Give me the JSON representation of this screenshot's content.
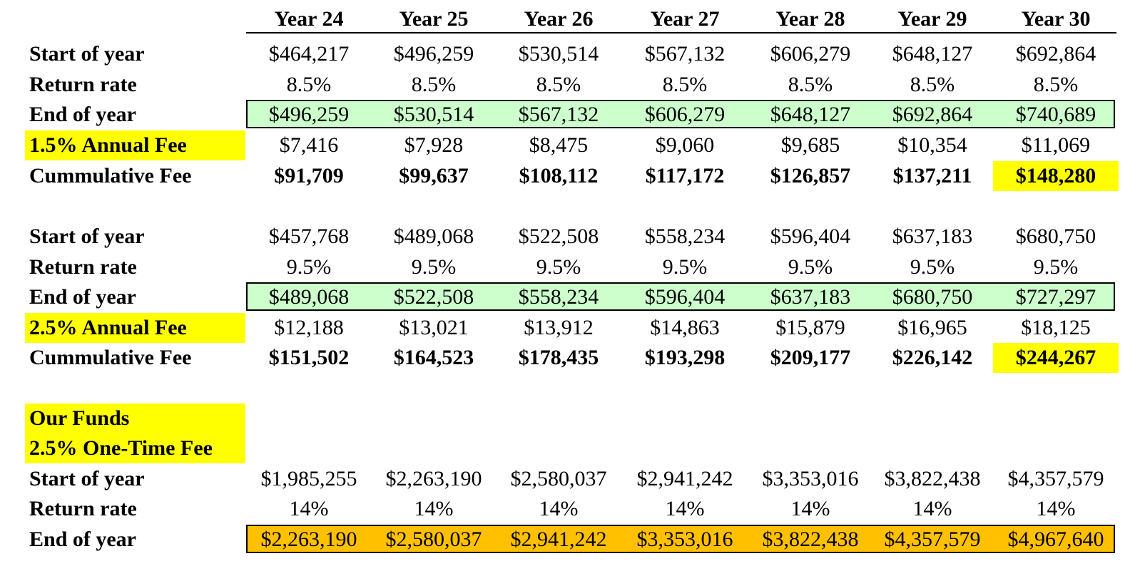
{
  "colors": {
    "highlight": "#ffff00",
    "end_green": "#ccffcc",
    "end_orange": "#ffc000"
  },
  "header": {
    "years": [
      "Year 24",
      "Year 25",
      "Year 26",
      "Year 27",
      "Year 28",
      "Year 29",
      "Year 30"
    ]
  },
  "section1": {
    "fee_label": "1.5%  Annual Fee",
    "rows": [
      {
        "label": "Start of year",
        "values": [
          "$464,217",
          "$496,259",
          "$530,514",
          "$567,132",
          "$606,279",
          "$648,127",
          "$692,864"
        ]
      },
      {
        "label": "Return rate",
        "values": [
          "8.5%",
          "8.5%",
          "8.5%",
          "8.5%",
          "8.5%",
          "8.5%",
          "8.5%"
        ]
      },
      {
        "label": "End of year",
        "values": [
          "$496,259",
          "$530,514",
          "$567,132",
          "$606,279",
          "$648,127",
          "$692,864",
          "$740,689"
        ]
      },
      {
        "label": "1.5%  Annual Fee",
        "values": [
          "$7,416",
          "$7,928",
          "$8,475",
          "$9,060",
          "$9,685",
          "$10,354",
          "$11,069"
        ]
      },
      {
        "label": "Cummulative Fee",
        "values": [
          "$91,709",
          "$99,637",
          "$108,112",
          "$117,172",
          "$126,857",
          "$137,211",
          "$148,280"
        ]
      }
    ]
  },
  "section2": {
    "rows": [
      {
        "label": "Start of year",
        "values": [
          "$457,768",
          "$489,068",
          "$522,508",
          "$558,234",
          "$596,404",
          "$637,183",
          "$680,750"
        ]
      },
      {
        "label": "Return rate",
        "values": [
          "9.5%",
          "9.5%",
          "9.5%",
          "9.5%",
          "9.5%",
          "9.5%",
          "9.5%"
        ]
      },
      {
        "label": "End of year",
        "values": [
          "$489,068",
          "$522,508",
          "$558,234",
          "$596,404",
          "$637,183",
          "$680,750",
          "$727,297"
        ]
      },
      {
        "label": "2.5% Annual Fee",
        "values": [
          "$12,188",
          "$13,021",
          "$13,912",
          "$14,863",
          "$15,879",
          "$16,965",
          "$18,125"
        ]
      },
      {
        "label": "Cummulative Fee",
        "values": [
          "$151,502",
          "$164,523",
          "$178,435",
          "$193,298",
          "$209,177",
          "$226,142",
          "$244,267"
        ]
      }
    ]
  },
  "section3": {
    "title_line1": "Our Funds",
    "title_line2": "2.5% One-Time Fee",
    "rows": [
      {
        "label": "Start of year",
        "values": [
          "$1,985,255",
          "$2,263,190",
          "$2,580,037",
          "$2,941,242",
          "$3,353,016",
          "$3,822,438",
          "$4,357,579"
        ]
      },
      {
        "label": "Return rate",
        "values": [
          "14%",
          "14%",
          "14%",
          "14%",
          "14%",
          "14%",
          "14%"
        ]
      },
      {
        "label": "End of year",
        "values": [
          "$2,263,190",
          "$2,580,037",
          "$2,941,242",
          "$3,353,016",
          "$3,822,438",
          "$4,357,579",
          "$4,967,640"
        ]
      }
    ]
  }
}
